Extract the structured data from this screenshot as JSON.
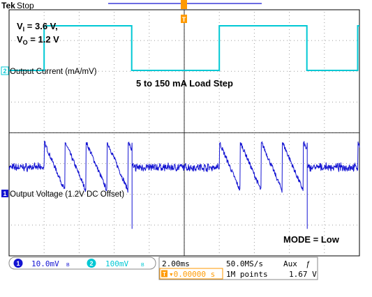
{
  "header": {
    "brand": "Tek",
    "status": "Stop"
  },
  "annotations": {
    "vi_label": "V",
    "vi_sub": "I",
    "vi_value": " = 3.6 V,",
    "vo_label": "V",
    "vo_sub": "O",
    "vo_value": " = 1.2 V",
    "load_step": "5 to 150 mA Load Step",
    "mode": "MODE = Low"
  },
  "channels": [
    {
      "number": "2",
      "label": "Output Current (mA/mV)",
      "scale": "100mV",
      "color": "#00c8d4"
    },
    {
      "number": "1",
      "label": "Output Voltage (1.2V DC Offset)",
      "scale": "10.0mV",
      "color": "#1414d2"
    }
  ],
  "trigger": {
    "marker": "T",
    "position": "▾0.00000 s"
  },
  "status_bar": {
    "timebase": "2.00ms",
    "sample_rate": "50.0MS/s",
    "record_length": "1M points",
    "trigger_source": "Aux",
    "trigger_slope": "ƒ",
    "trigger_level": "1.67 V",
    "ch1_scale": "10.0mV",
    "ch2_scale": "100mV"
  },
  "chart_data": {
    "type": "line",
    "title": "",
    "xlabel": "",
    "ylabel": "",
    "x_unit": "ms",
    "xlim": [
      -8,
      12
    ],
    "grid": true,
    "divisions": {
      "x": 10,
      "y": 8
    },
    "series": [
      {
        "name": "Output Current (mA/mV)",
        "unit": "mA",
        "low": 5,
        "high": 150,
        "steps": [
          {
            "x": -8,
            "y": 5
          },
          {
            "x": -6,
            "y": 150
          },
          {
            "x": -1,
            "y": 5
          },
          {
            "x": 4,
            "y": 150
          },
          {
            "x": 9,
            "y": 5
          },
          {
            "x": 11.9,
            "y": 150
          }
        ]
      },
      {
        "name": "Output Voltage (1.2V DC Offset)",
        "unit": "mV",
        "ripple_high_load_mv": [
          -10,
          10
        ],
        "ripple_low_load_mv": [
          -1,
          1
        ],
        "sawtooth_period_ms": 1.2,
        "undershoot_mv": -25
      }
    ]
  }
}
